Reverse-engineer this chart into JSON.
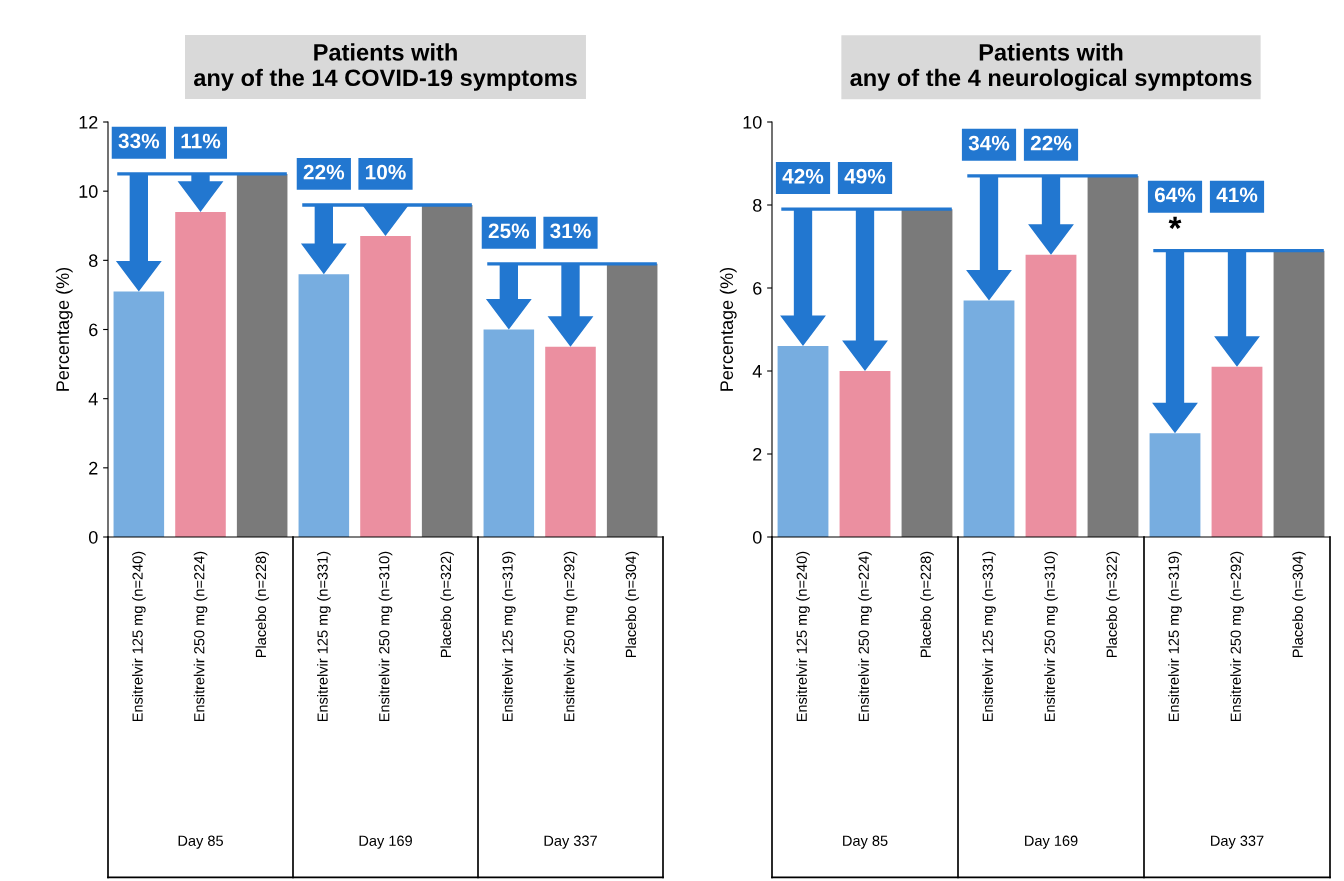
{
  "chart_data": [
    {
      "type": "bar",
      "title": "Patients with\nany of the 14 COVID-19 symptoms",
      "ylabel": "Percentage (%)",
      "categories": [
        "Ensitrelvir 125 mg (n=240)",
        "Ensitrelvir 250 mg (n=224)",
        "Placebo (n=228)",
        "Ensitrelvir 125 mg (n=331)",
        "Ensitrelvir 250 mg (n=310)",
        "Placebo (n=322)",
        "Ensitrelvir 125 mg (n=319)",
        "Ensitrelvir 250 mg (n=292)",
        "Placebo (n=304)"
      ],
      "values": [
        7.1,
        9.4,
        10.5,
        7.6,
        8.7,
        9.6,
        6.0,
        5.5,
        7.9
      ],
      "colors": [
        "#77ade0",
        "#eb8fa0",
        "#7a7a7a",
        "#77ade0",
        "#eb8fa0",
        "#7a7a7a",
        "#77ade0",
        "#eb8fa0",
        "#7a7a7a"
      ],
      "ylim": [
        0,
        12
      ],
      "yticks": [
        0,
        2,
        4,
        6,
        8,
        10,
        12
      ],
      "grid": false,
      "legend": false,
      "annotations": [
        "Day 85",
        "Day 169",
        "Day 337",
        "33%",
        "11%",
        "22%",
        "10%",
        "25%",
        "31%"
      ]
    },
    {
      "type": "bar",
      "title": "Patients with\nany of the 4 neurological symptoms",
      "ylabel": "Percentage (%)",
      "categories": [
        "Ensitrelvir 125 mg (n=240)",
        "Ensitrelvir 250 mg (n=224)",
        "Placebo (n=228)",
        "Ensitrelvir 125 mg (n=331)",
        "Ensitrelvir 250 mg (n=310)",
        "Placebo (n=322)",
        "Ensitrelvir 125 mg (n=319)",
        "Ensitrelvir 250 mg (n=292)",
        "Placebo (n=304)"
      ],
      "values": [
        4.6,
        4.0,
        7.9,
        5.7,
        6.8,
        8.7,
        2.5,
        4.1,
        6.9
      ],
      "colors": [
        "#77ade0",
        "#eb8fa0",
        "#7a7a7a",
        "#77ade0",
        "#eb8fa0",
        "#7a7a7a",
        "#77ade0",
        "#eb8fa0",
        "#7a7a7a"
      ],
      "ylim": [
        0,
        10
      ],
      "yticks": [
        0,
        2,
        4,
        6,
        8,
        10
      ],
      "grid": false,
      "legend": false,
      "annotations": [
        "Day 85",
        "Day 169",
        "Day 337",
        "42%",
        "49%",
        "34%",
        "22%",
        "64%",
        "41%",
        "*"
      ]
    }
  ]
}
